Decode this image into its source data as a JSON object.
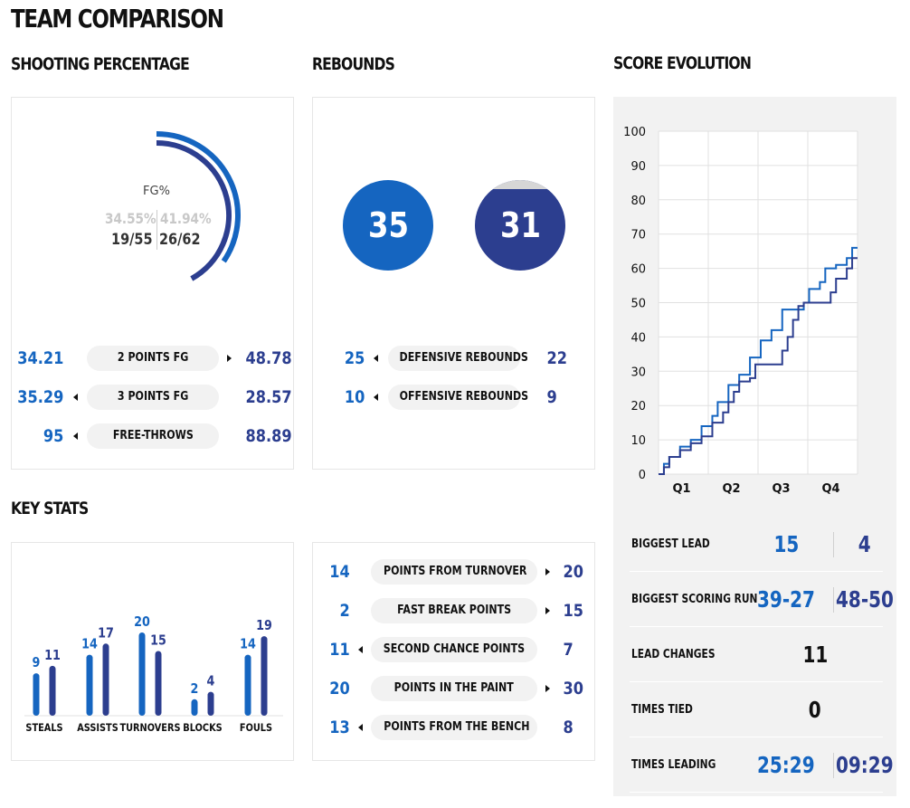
{
  "title": "TEAM COMPARISON",
  "sections": {
    "shooting": "SHOOTING PERCENTAGE",
    "rebounds": "REBOUNDS",
    "score_evolution": "SCORE EVOLUTION",
    "key_stats": "KEY STATS"
  },
  "colors": {
    "team1": "#1565c0",
    "team2": "#2c3e8f",
    "pill_bg": "#f2f2f2",
    "panel_bg": "#f2f2f2"
  },
  "shooting": {
    "fg_label": "FG%",
    "team1_pct": "34.55%",
    "team2_pct": "41.94%",
    "team1_made": "19/55",
    "team2_made": "26/62",
    "team1_pct_value": 34.55,
    "team2_pct_value": 41.94,
    "rows": [
      {
        "left": "34.21",
        "label": "2 POINTS FG",
        "right": "48.78",
        "arrow": "right"
      },
      {
        "left": "35.29",
        "label": "3 POINTS FG",
        "right": "28.57",
        "arrow": "left"
      },
      {
        "left": "95",
        "label": "FREE-THROWS",
        "right": "88.89",
        "arrow": "left"
      }
    ]
  },
  "rebounds": {
    "team1_total": "35",
    "team2_total": "31",
    "rows": [
      {
        "left": "25",
        "label": "DEFENSIVE REBOUNDS",
        "right": "22",
        "arrow": "left"
      },
      {
        "left": "10",
        "label": "OFFENSIVE REBOUNDS",
        "right": "9",
        "arrow": "left"
      }
    ]
  },
  "key_stats_chart": {
    "categories": [
      "STEALS",
      "ASSISTS",
      "TURNOVERS",
      "BLOCKS",
      "FOULS"
    ],
    "team1": [
      9,
      14,
      20,
      2,
      14
    ],
    "team2": [
      11,
      17,
      15,
      4,
      19
    ]
  },
  "key_stats_rows": [
    {
      "left": "14",
      "label": "POINTS FROM TURNOVER",
      "right": "20",
      "arrow": "right"
    },
    {
      "left": "2",
      "label": "FAST BREAK POINTS",
      "right": "15",
      "arrow": "right"
    },
    {
      "left": "11",
      "label": "SECOND CHANCE POINTS",
      "right": "7",
      "arrow": "left"
    },
    {
      "left": "20",
      "label": "POINTS IN THE PAINT",
      "right": "30",
      "arrow": "right"
    },
    {
      "left": "13",
      "label": "POINTS FROM THE BENCH",
      "right": "8",
      "arrow": "left"
    }
  ],
  "chart_data": {
    "type": "line",
    "title": "SCORE EVOLUTION",
    "categories": [
      "Q1",
      "Q2",
      "Q3",
      "Q4"
    ],
    "ylim": [
      0,
      100
    ],
    "yticks": [
      0,
      10,
      20,
      30,
      40,
      50,
      60,
      70,
      80,
      90,
      100
    ],
    "grid": true,
    "series": [
      {
        "values": [
          [
            0,
            0
          ],
          [
            1,
            3
          ],
          [
            2,
            5
          ],
          [
            4,
            8
          ],
          [
            6,
            10
          ],
          [
            8,
            14
          ],
          [
            10,
            17
          ],
          [
            11,
            21
          ],
          [
            13,
            26
          ],
          [
            15,
            29
          ],
          [
            17,
            34
          ],
          [
            19,
            39
          ],
          [
            21,
            42
          ],
          [
            23,
            48
          ],
          [
            26,
            48
          ],
          [
            27,
            50
          ],
          [
            28,
            54
          ],
          [
            30,
            56
          ],
          [
            31,
            60
          ],
          [
            33,
            61
          ],
          [
            35,
            63
          ],
          [
            36,
            66
          ],
          [
            37,
            66
          ]
        ]
      },
      {
        "values": [
          [
            0,
            0
          ],
          [
            1,
            2
          ],
          [
            2,
            5
          ],
          [
            4,
            7
          ],
          [
            6,
            9
          ],
          [
            8,
            11
          ],
          [
            10,
            15
          ],
          [
            12,
            18
          ],
          [
            13,
            21
          ],
          [
            14,
            24
          ],
          [
            15,
            27
          ],
          [
            17,
            28
          ],
          [
            18,
            32
          ],
          [
            21,
            32
          ],
          [
            23,
            36
          ],
          [
            24,
            40
          ],
          [
            25,
            45
          ],
          [
            26,
            49
          ],
          [
            27,
            50
          ],
          [
            31,
            50
          ],
          [
            32,
            53
          ],
          [
            33,
            57
          ],
          [
            35,
            60
          ],
          [
            36,
            63
          ],
          [
            37,
            63
          ]
        ]
      }
    ]
  },
  "score_stats": {
    "rows": [
      {
        "label": "BIGGEST LEAD",
        "left": "15",
        "right": "4"
      },
      {
        "label": "BIGGEST SCORING RUN",
        "left": "39-27",
        "right": "48-50"
      },
      {
        "label": "LEAD CHANGES",
        "single": "11"
      },
      {
        "label": "TIMES TIED",
        "single": "0"
      },
      {
        "label": "TIMES LEADING",
        "left": "25:29",
        "right": "09:29"
      }
    ]
  }
}
